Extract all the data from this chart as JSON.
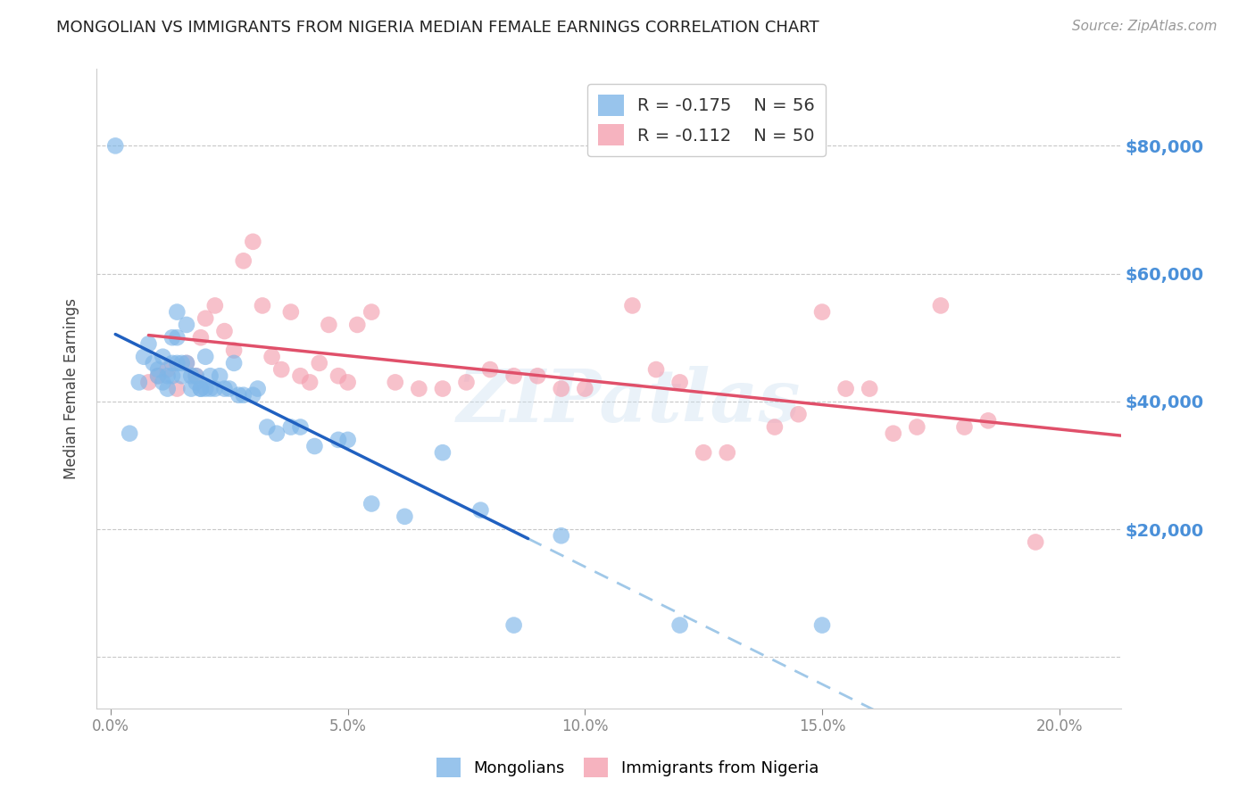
{
  "title": "MONGOLIAN VS IMMIGRANTS FROM NIGERIA MEDIAN FEMALE EARNINGS CORRELATION CHART",
  "source": "Source: ZipAtlas.com",
  "ylabel": "Median Female Earnings",
  "xlabel_ticks": [
    "0.0%",
    "5.0%",
    "10.0%",
    "15.0%",
    "20.0%"
  ],
  "xlabel_vals": [
    0.0,
    0.05,
    0.1,
    0.15,
    0.2
  ],
  "ylabel_ticks": [
    0,
    20000,
    40000,
    60000,
    80000
  ],
  "ylabel_labels": [
    "",
    "$20,000",
    "$40,000",
    "$60,000",
    "$80,000"
  ],
  "ylim": [
    -8000,
    92000
  ],
  "xlim": [
    -0.003,
    0.213
  ],
  "mongolian_R": -0.175,
  "mongolian_N": 56,
  "nigeria_R": -0.112,
  "nigeria_N": 50,
  "mongolian_color": "#7eb6e8",
  "nigeria_color": "#f4a0b0",
  "mongolian_line_color": "#2060c0",
  "nigeria_line_color": "#e0506a",
  "dashed_line_color": "#a0c8e8",
  "watermark": "ZIPatlas",
  "background_color": "#ffffff",
  "mongolian_x": [
    0.001,
    0.004,
    0.006,
    0.007,
    0.008,
    0.009,
    0.01,
    0.01,
    0.011,
    0.011,
    0.012,
    0.012,
    0.013,
    0.013,
    0.013,
    0.014,
    0.014,
    0.014,
    0.015,
    0.015,
    0.016,
    0.016,
    0.017,
    0.017,
    0.018,
    0.018,
    0.019,
    0.019,
    0.02,
    0.02,
    0.021,
    0.021,
    0.022,
    0.023,
    0.024,
    0.025,
    0.026,
    0.027,
    0.028,
    0.03,
    0.031,
    0.033,
    0.035,
    0.038,
    0.04,
    0.043,
    0.048,
    0.05,
    0.055,
    0.062,
    0.07,
    0.078,
    0.085,
    0.095,
    0.12,
    0.15
  ],
  "mongolian_y": [
    80000,
    35000,
    43000,
    47000,
    49000,
    46000,
    45000,
    44000,
    43000,
    47000,
    44000,
    42000,
    50000,
    46000,
    44000,
    54000,
    50000,
    46000,
    46000,
    44000,
    52000,
    46000,
    44000,
    42000,
    44000,
    43000,
    42000,
    42000,
    47000,
    42000,
    44000,
    42000,
    42000,
    44000,
    42000,
    42000,
    46000,
    41000,
    41000,
    41000,
    42000,
    36000,
    35000,
    36000,
    36000,
    33000,
    34000,
    34000,
    24000,
    22000,
    32000,
    23000,
    5000,
    19000,
    5000,
    5000
  ],
  "nigeria_x": [
    0.008,
    0.01,
    0.012,
    0.014,
    0.016,
    0.018,
    0.019,
    0.02,
    0.022,
    0.024,
    0.026,
    0.028,
    0.03,
    0.032,
    0.034,
    0.036,
    0.038,
    0.04,
    0.042,
    0.044,
    0.046,
    0.048,
    0.05,
    0.052,
    0.055,
    0.06,
    0.065,
    0.07,
    0.075,
    0.08,
    0.085,
    0.09,
    0.095,
    0.1,
    0.11,
    0.115,
    0.12,
    0.125,
    0.13,
    0.14,
    0.145,
    0.15,
    0.155,
    0.16,
    0.165,
    0.17,
    0.175,
    0.18,
    0.185,
    0.195
  ],
  "nigeria_y": [
    43000,
    44000,
    45000,
    42000,
    46000,
    44000,
    50000,
    53000,
    55000,
    51000,
    48000,
    62000,
    65000,
    55000,
    47000,
    45000,
    54000,
    44000,
    43000,
    46000,
    52000,
    44000,
    43000,
    52000,
    54000,
    43000,
    42000,
    42000,
    43000,
    45000,
    44000,
    44000,
    42000,
    42000,
    55000,
    45000,
    43000,
    32000,
    32000,
    36000,
    38000,
    54000,
    42000,
    42000,
    35000,
    36000,
    55000,
    36000,
    37000,
    18000
  ],
  "blue_line_x_start": 0.001,
  "blue_line_x_end": 0.088,
  "dashed_line_x_start": 0.088,
  "dashed_line_x_end": 0.213,
  "pink_line_x_start": 0.008,
  "pink_line_x_end": 0.213
}
